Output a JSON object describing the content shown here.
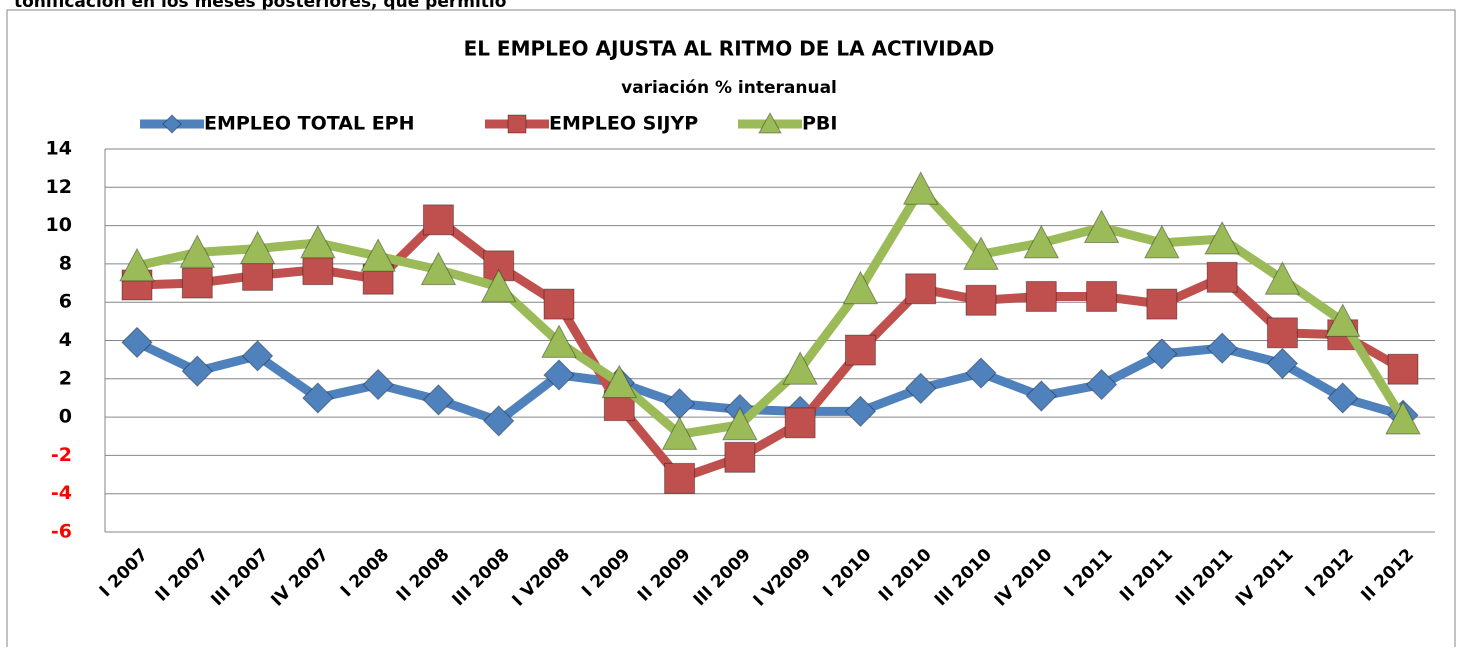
{
  "page_text": "tonificación en los meses posteriores, que permitió",
  "chart_data": {
    "type": "line",
    "title": "EL EMPLEO AJUSTA AL RITMO DE LA ACTIVIDAD",
    "subtitle": "variación % interanual",
    "categories": [
      "I 2007",
      "II 2007",
      "III 2007",
      "IV 2007",
      "I 2008",
      "II 2008",
      "III 2008",
      "I V2008",
      "I 2009",
      "II 2009",
      "III 2009",
      "I V2009",
      "I 2010",
      "II 2010",
      "III 2010",
      "IV 2010",
      "I 2011",
      "II 2011",
      "III 2011",
      "IV 2011",
      "I 2012",
      "II 2012"
    ],
    "series": [
      {
        "name": "EMPLEO TOTAL EPH",
        "color": "#4f81bd",
        "marker": "diamond",
        "values": [
          3.9,
          2.4,
          3.2,
          1.0,
          1.7,
          0.9,
          -0.2,
          2.2,
          1.8,
          0.7,
          0.4,
          0.3,
          0.3,
          1.5,
          2.3,
          1.1,
          1.7,
          3.3,
          3.6,
          2.8,
          1.0,
          0.1
        ]
      },
      {
        "name": "EMPLEO SIJYP",
        "color": "#c0504d",
        "marker": "square",
        "values": [
          6.9,
          7.0,
          7.4,
          7.7,
          7.2,
          10.3,
          7.9,
          5.9,
          0.6,
          -3.2,
          -2.1,
          -0.3,
          3.5,
          6.7,
          6.1,
          6.3,
          6.3,
          5.9,
          7.3,
          4.4,
          4.3,
          2.5
        ]
      },
      {
        "name": "PBI",
        "color": "#9bbb59",
        "marker": "triangle",
        "values": [
          7.9,
          8.6,
          8.8,
          9.1,
          8.4,
          7.7,
          6.8,
          3.9,
          1.8,
          -0.9,
          -0.4,
          2.5,
          6.7,
          11.9,
          8.5,
          9.1,
          9.9,
          9.1,
          9.3,
          7.2,
          5.0,
          -0.1
        ]
      }
    ],
    "ylim": [
      -6,
      14
    ],
    "yticks": [
      -6,
      -4,
      -2,
      0,
      2,
      4,
      6,
      8,
      10,
      12,
      14
    ],
    "grid": true,
    "negative_tick_color": "#ff0000",
    "legend": "top"
  }
}
